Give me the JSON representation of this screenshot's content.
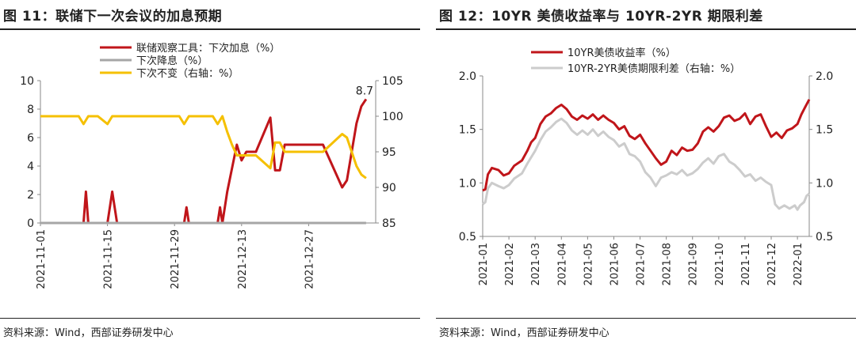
{
  "left": {
    "title": "图 11：联储下一次会议的加息预期",
    "source": "资料来源：Wind，西部证券研发中心",
    "legend": [
      {
        "label": "联储观察工具：下次加息（%）",
        "color": "#c0151a"
      },
      {
        "label": "下次降息（%）",
        "color": "#a6a6a6"
      },
      {
        "label": "下次不变（右轴：%）",
        "color": "#f5c000"
      }
    ]
  },
  "right": {
    "title": "图 12：10YR 美债收益率与 10YR-2YR 期限利差",
    "source": "资料来源：Wind，西部证券研发中心",
    "legend": [
      {
        "label": "10YR美债收益率（%）",
        "color": "#c0151a"
      },
      {
        "label": "10YR-2YR美债期限利差（右轴：%）",
        "color": "#cccccc"
      }
    ]
  },
  "chart_data": [
    {
      "type": "line",
      "title": "图 11：联储下一次会议的加息预期",
      "x_ticks": [
        "2021-11-01",
        "2021-11-15",
        "2021-11-29",
        "2021-12-13",
        "2021-12-27"
      ],
      "x_range_days": [
        0,
        70
      ],
      "y_left_ticks": [
        "0",
        "2",
        "4",
        "6",
        "8",
        "10"
      ],
      "y_left_range": [
        0,
        10
      ],
      "y_right_ticks": [
        "85",
        "90",
        "95",
        "100",
        "105"
      ],
      "y_right_range": [
        85,
        105
      ],
      "annotation": "8.7",
      "series": [
        {
          "name": "联储观察工具：下次加息（%）",
          "axis": "left",
          "color": "#c0151a",
          "points": [
            [
              0,
              0
            ],
            [
              9,
              0
            ],
            [
              9.5,
              2.2
            ],
            [
              10,
              0
            ],
            [
              14,
              0
            ],
            [
              15,
              2.2
            ],
            [
              16,
              0
            ],
            [
              30,
              0
            ],
            [
              30.5,
              1.1
            ],
            [
              31,
              0
            ],
            [
              37,
              0
            ],
            [
              37.5,
              1.1
            ],
            [
              38,
              0
            ],
            [
              39,
              2.2
            ],
            [
              41,
              5.5
            ],
            [
              42,
              4.4
            ],
            [
              43,
              5.0
            ],
            [
              45,
              5.0
            ],
            [
              48,
              7.4
            ],
            [
              49,
              3.7
            ],
            [
              50,
              3.7
            ],
            [
              51,
              5.5
            ],
            [
              52,
              5.5
            ],
            [
              59,
              5.5
            ],
            [
              63,
              2.5
            ],
            [
              64,
              3.0
            ],
            [
              66,
              7.0
            ],
            [
              67,
              8.2
            ],
            [
              68,
              8.7
            ]
          ]
        },
        {
          "name": "下次降息（%）",
          "axis": "left",
          "color": "#a6a6a6",
          "points": [
            [
              0,
              0
            ],
            [
              68,
              0
            ]
          ]
        },
        {
          "name": "下次不变（右轴：%）",
          "axis": "right",
          "color": "#f5c000",
          "points": [
            [
              0,
              100
            ],
            [
              8,
              100
            ],
            [
              9,
              98.9
            ],
            [
              10,
              100
            ],
            [
              12,
              100
            ],
            [
              14,
              98.9
            ],
            [
              15,
              100
            ],
            [
              29,
              100
            ],
            [
              30,
              98.9
            ],
            [
              31,
              100
            ],
            [
              36,
              100
            ],
            [
              37,
              98.9
            ],
            [
              38,
              100
            ],
            [
              39,
              97.8
            ],
            [
              40,
              96
            ],
            [
              41,
              94.5
            ],
            [
              45,
              94.5
            ],
            [
              48,
              92.7
            ],
            [
              49,
              96.3
            ],
            [
              50,
              96.3
            ],
            [
              51,
              95
            ],
            [
              59,
              95
            ],
            [
              63,
              97.5
            ],
            [
              64,
              97
            ],
            [
              66,
              93
            ],
            [
              67,
              91.8
            ],
            [
              68,
              91.3
            ]
          ]
        }
      ]
    },
    {
      "type": "line",
      "title": "图 12：10YR 美债收益率与 10YR-2YR 期限利差",
      "x_ticks": [
        "2021-01",
        "2021-02",
        "2021-03",
        "2021-04",
        "2021-05",
        "2021-06",
        "2021-07",
        "2021-08",
        "2021-09",
        "2021-10",
        "2021-11",
        "2021-12",
        "2022-01"
      ],
      "x_range_months": [
        0,
        12.45
      ],
      "y_left_ticks": [
        "0.5",
        "1.0",
        "1.5",
        "2.0"
      ],
      "y_left_range": [
        0.5,
        2.0
      ],
      "y_right_ticks": [
        "0.5",
        "1.0",
        "1.5",
        "2.0"
      ],
      "y_right_range": [
        0.5,
        2.0
      ],
      "series": [
        {
          "name": "10YR美债收益率（%）",
          "axis": "left",
          "color": "#c0151a",
          "points": [
            [
              0,
              0.93
            ],
            [
              0.1,
              0.94
            ],
            [
              0.2,
              1.08
            ],
            [
              0.35,
              1.14
            ],
            [
              0.6,
              1.12
            ],
            [
              0.8,
              1.07
            ],
            [
              1.0,
              1.09
            ],
            [
              1.2,
              1.16
            ],
            [
              1.5,
              1.21
            ],
            [
              1.7,
              1.3
            ],
            [
              1.85,
              1.38
            ],
            [
              2.0,
              1.42
            ],
            [
              2.2,
              1.55
            ],
            [
              2.4,
              1.62
            ],
            [
              2.6,
              1.65
            ],
            [
              2.8,
              1.7
            ],
            [
              3.0,
              1.73
            ],
            [
              3.2,
              1.69
            ],
            [
              3.4,
              1.62
            ],
            [
              3.6,
              1.59
            ],
            [
              3.8,
              1.63
            ],
            [
              4.0,
              1.6
            ],
            [
              4.2,
              1.64
            ],
            [
              4.4,
              1.59
            ],
            [
              4.6,
              1.63
            ],
            [
              4.8,
              1.59
            ],
            [
              5.0,
              1.56
            ],
            [
              5.2,
              1.5
            ],
            [
              5.4,
              1.53
            ],
            [
              5.6,
              1.44
            ],
            [
              5.8,
              1.41
            ],
            [
              6.0,
              1.45
            ],
            [
              6.2,
              1.37
            ],
            [
              6.4,
              1.3
            ],
            [
              6.6,
              1.23
            ],
            [
              6.8,
              1.17
            ],
            [
              7.0,
              1.2
            ],
            [
              7.2,
              1.3
            ],
            [
              7.4,
              1.26
            ],
            [
              7.6,
              1.33
            ],
            [
              7.8,
              1.3
            ],
            [
              8.0,
              1.31
            ],
            [
              8.2,
              1.37
            ],
            [
              8.4,
              1.48
            ],
            [
              8.6,
              1.52
            ],
            [
              8.8,
              1.48
            ],
            [
              9.0,
              1.53
            ],
            [
              9.2,
              1.61
            ],
            [
              9.4,
              1.63
            ],
            [
              9.6,
              1.58
            ],
            [
              9.8,
              1.6
            ],
            [
              10.0,
              1.65
            ],
            [
              10.2,
              1.55
            ],
            [
              10.4,
              1.62
            ],
            [
              10.6,
              1.64
            ],
            [
              10.8,
              1.53
            ],
            [
              11.0,
              1.43
            ],
            [
              11.2,
              1.47
            ],
            [
              11.4,
              1.42
            ],
            [
              11.6,
              1.49
            ],
            [
              11.8,
              1.51
            ],
            [
              12.0,
              1.55
            ],
            [
              12.15,
              1.64
            ],
            [
              12.3,
              1.71
            ],
            [
              12.45,
              1.78
            ]
          ]
        },
        {
          "name": "10YR-2YR美债期限利差（右轴：%）",
          "axis": "right",
          "color": "#cccccc",
          "points": [
            [
              0,
              0.8
            ],
            [
              0.1,
              0.82
            ],
            [
              0.2,
              0.95
            ],
            [
              0.35,
              1.0
            ],
            [
              0.6,
              0.97
            ],
            [
              0.8,
              0.95
            ],
            [
              1.0,
              0.98
            ],
            [
              1.2,
              1.04
            ],
            [
              1.5,
              1.09
            ],
            [
              1.7,
              1.18
            ],
            [
              1.85,
              1.24
            ],
            [
              2.0,
              1.3
            ],
            [
              2.2,
              1.4
            ],
            [
              2.4,
              1.48
            ],
            [
              2.6,
              1.52
            ],
            [
              2.8,
              1.57
            ],
            [
              3.0,
              1.6
            ],
            [
              3.2,
              1.56
            ],
            [
              3.4,
              1.49
            ],
            [
              3.6,
              1.45
            ],
            [
              3.8,
              1.49
            ],
            [
              4.0,
              1.45
            ],
            [
              4.2,
              1.5
            ],
            [
              4.4,
              1.44
            ],
            [
              4.6,
              1.48
            ],
            [
              4.8,
              1.43
            ],
            [
              5.0,
              1.4
            ],
            [
              5.2,
              1.34
            ],
            [
              5.4,
              1.37
            ],
            [
              5.6,
              1.27
            ],
            [
              5.8,
              1.25
            ],
            [
              6.0,
              1.2
            ],
            [
              6.2,
              1.1
            ],
            [
              6.4,
              1.05
            ],
            [
              6.6,
              0.97
            ],
            [
              6.8,
              1.05
            ],
            [
              7.0,
              1.07
            ],
            [
              7.2,
              1.1
            ],
            [
              7.4,
              1.08
            ],
            [
              7.6,
              1.12
            ],
            [
              7.8,
              1.07
            ],
            [
              8.0,
              1.09
            ],
            [
              8.2,
              1.13
            ],
            [
              8.4,
              1.19
            ],
            [
              8.6,
              1.23
            ],
            [
              8.8,
              1.18
            ],
            [
              9.0,
              1.25
            ],
            [
              9.2,
              1.27
            ],
            [
              9.4,
              1.2
            ],
            [
              9.6,
              1.17
            ],
            [
              9.8,
              1.12
            ],
            [
              10.0,
              1.06
            ],
            [
              10.2,
              1.08
            ],
            [
              10.4,
              1.02
            ],
            [
              10.6,
              1.05
            ],
            [
              10.8,
              1.01
            ],
            [
              11.0,
              0.98
            ],
            [
              11.15,
              0.8
            ],
            [
              11.3,
              0.76
            ],
            [
              11.5,
              0.79
            ],
            [
              11.7,
              0.76
            ],
            [
              11.9,
              0.79
            ],
            [
              12.0,
              0.75
            ],
            [
              12.1,
              0.79
            ],
            [
              12.25,
              0.82
            ],
            [
              12.35,
              0.88
            ],
            [
              12.45,
              0.9
            ]
          ]
        }
      ]
    }
  ]
}
